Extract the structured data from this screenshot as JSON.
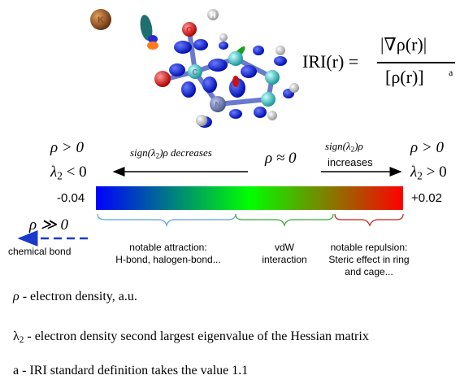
{
  "molecule": {
    "atom_labels": [
      {
        "id": "potassium",
        "text": "K",
        "color": "#8a4a1a"
      },
      {
        "id": "hydrogen-top",
        "text": "H",
        "color": "#ffffff"
      },
      {
        "id": "oxygen-top",
        "text": "O",
        "color": "#e02020"
      },
      {
        "id": "carbon",
        "text": "C",
        "color": "#6b7aa0"
      },
      {
        "id": "nitrogen",
        "text": "N",
        "color": "#6b7aa0"
      }
    ]
  },
  "formula": {
    "lhs": "IRI(r) =",
    "numerator": "|∇ρ(r)|",
    "denominator": "[ρ(r)]",
    "exponent": "a"
  },
  "conditions": {
    "left_rho": "ρ > 0",
    "left_lambda_symbol": "λ",
    "left_lambda_sub": "2",
    "left_lambda_rel": "< 0",
    "right_rho": "ρ > 0",
    "right_lambda_symbol": "λ",
    "right_lambda_sub": "2",
    "right_lambda_rel": "> 0",
    "center": "ρ ≈ 0"
  },
  "arrows": {
    "left_text_prefix": "sign(λ",
    "left_text_sub": "2",
    "left_text_suffix": ")ρ decreases",
    "right_text_prefix": "sign(λ",
    "right_text_sub": "2",
    "right_text_suffix": ")ρ",
    "right_text_line2": "increases"
  },
  "color_bar": {
    "min_label": "-0.04",
    "max_label": "+0.02",
    "colors": [
      "#0000ff",
      "#00ff00",
      "#ff0000"
    ]
  },
  "chemical_bond": {
    "rho_label": "ρ ≫ 0",
    "label": "chemical bond"
  },
  "bands": [
    {
      "line1": "notable attraction:",
      "line2": "H-bond, halogen-bond...",
      "color": "#5aa0e8"
    },
    {
      "line1": "vdW",
      "line2": "interaction",
      "color": "#33aa33"
    },
    {
      "line1": "notable repulsion:",
      "line2": "Steric effect in ring",
      "line3": "and cage...",
      "color": "#c02020"
    }
  ],
  "legend": {
    "rho": {
      "symbol": "ρ",
      "text": "- electron density, a.u."
    },
    "lambda": {
      "symbol": "λ",
      "sub": "2",
      "text": " - electron density second largest eigenvalue of the Hessian matrix"
    },
    "a": {
      "symbol": "a",
      "text": " - IRI standard definition takes the value 1.1"
    }
  }
}
